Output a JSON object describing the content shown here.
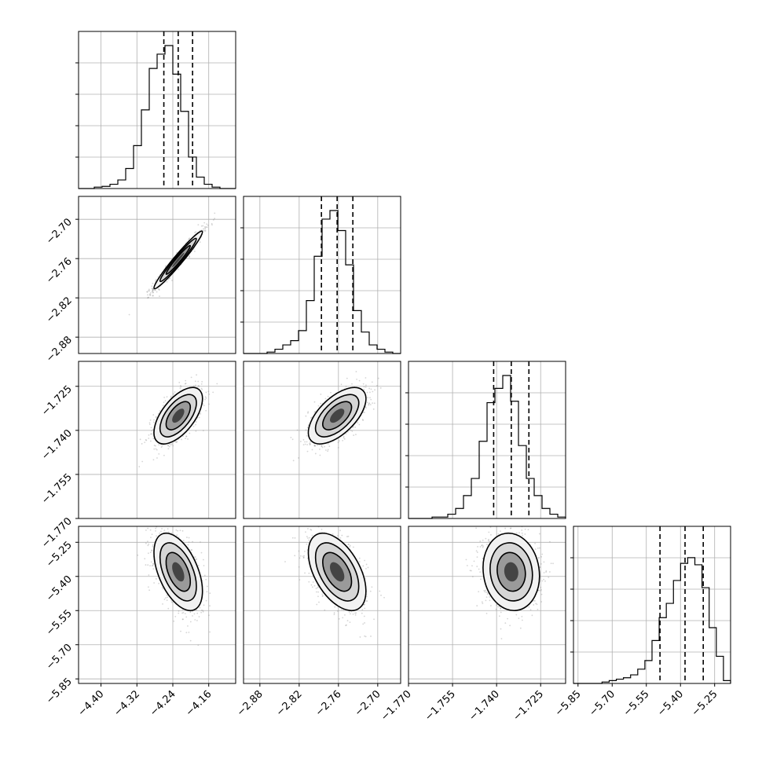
{
  "chart_data": {
    "type": "corner",
    "title": "",
    "grid": true,
    "colors": {
      "hist": "#000000",
      "grid": "#b0b0b0",
      "points": "#888888",
      "frame": "#000000"
    },
    "parameters": [
      {
        "range": [
          -4.45,
          -4.1
        ],
        "ticks": [
          -4.4,
          -4.32,
          -4.24,
          -4.16
        ],
        "tick_labels": [
          "−4.40",
          "−4.32",
          "−4.24",
          "−4.16"
        ],
        "quantiles": [
          -4.26,
          -4.228,
          -4.196
        ],
        "hist": [
          0,
          0,
          0.01,
          0.015,
          0.03,
          0.06,
          0.14,
          0.3,
          0.55,
          0.84,
          0.94,
          1.0,
          0.8,
          0.54,
          0.22,
          0.08,
          0.03,
          0.01,
          0,
          0
        ]
      },
      {
        "range": [
          -2.905,
          -2.665
        ],
        "ticks": [
          -2.88,
          -2.82,
          -2.76,
          -2.7
        ],
        "tick_labels": [
          "−2.88",
          "−2.82",
          "−2.76",
          "−2.70"
        ],
        "quantiles": [
          -2.786,
          -2.762,
          -2.738
        ],
        "hist": [
          0,
          0,
          0,
          0.01,
          0.03,
          0.06,
          0.09,
          0.16,
          0.37,
          0.68,
          0.94,
          1.0,
          0.86,
          0.62,
          0.3,
          0.15,
          0.06,
          0.03,
          0.01,
          0
        ]
      },
      {
        "range": [
          -1.77,
          -1.7165
        ],
        "ticks": [
          -1.77,
          -1.755,
          -1.74,
          -1.725
        ],
        "tick_labels": [
          "−1.770",
          "−1.755",
          "−1.740",
          "−1.725"
        ],
        "quantiles": [
          -1.741,
          -1.735,
          -1.729
        ],
        "hist": [
          0,
          0,
          0,
          0.01,
          0.01,
          0.03,
          0.07,
          0.16,
          0.28,
          0.54,
          0.81,
          0.91,
          1.0,
          0.82,
          0.51,
          0.28,
          0.16,
          0.07,
          0.03,
          0.01
        ]
      },
      {
        "range": [
          -5.87,
          -5.18
        ],
        "ticks": [
          -5.85,
          -5.7,
          -5.55,
          -5.4,
          -5.25
        ],
        "tick_labels": [
          "−5.85",
          "−5.70",
          "−5.55",
          "−5.40",
          "−5.25"
        ],
        "quantiles": [
          -5.49,
          -5.38,
          -5.3
        ],
        "hist": [
          0,
          0,
          0,
          0,
          0.01,
          0.02,
          0.03,
          0.04,
          0.06,
          0.1,
          0.16,
          0.3,
          0.46,
          0.56,
          0.72,
          0.84,
          0.88,
          0.83,
          0.67,
          0.39,
          0.19,
          0.02
        ]
      }
    ],
    "bottom_extra_labels": [
      "−1.770"
    ],
    "pairs": [
      {
        "row": 1,
        "col": 0,
        "center": [
          -4.228,
          -2.762
        ],
        "sd": [
          0.027,
          0.022
        ],
        "rho": 0.97
      },
      {
        "row": 2,
        "col": 0,
        "center": [
          -4.228,
          -1.735
        ],
        "sd": [
          0.027,
          0.0048
        ],
        "rho": 0.6
      },
      {
        "row": 2,
        "col": 1,
        "center": [
          -2.762,
          -1.735
        ],
        "sd": [
          0.022,
          0.0048
        ],
        "rho": 0.6
      },
      {
        "row": 3,
        "col": 0,
        "center": [
          -4.228,
          -5.38
        ],
        "sd": [
          0.027,
          0.085
        ],
        "rho": -0.5
      },
      {
        "row": 3,
        "col": 1,
        "center": [
          -2.762,
          -5.38
        ],
        "sd": [
          0.022,
          0.085
        ],
        "rho": -0.5
      },
      {
        "row": 3,
        "col": 2,
        "center": [
          -1.735,
          -5.38
        ],
        "sd": [
          0.0048,
          0.085
        ],
        "rho": -0.1
      }
    ]
  }
}
